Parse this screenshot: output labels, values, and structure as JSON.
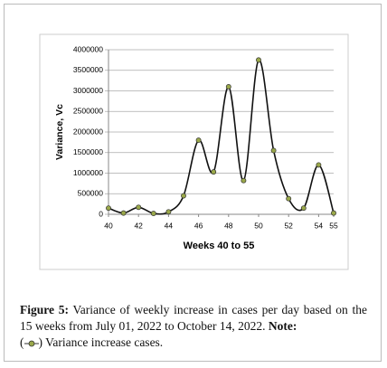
{
  "chart_data": {
    "type": "line",
    "x": [
      40,
      41,
      42,
      43,
      44,
      45,
      46,
      47,
      48,
      49,
      50,
      51,
      52,
      53,
      54,
      55
    ],
    "series": [
      {
        "name": "Variance increase cases.",
        "color": "#9aa84a",
        "values": [
          150000,
          30000,
          170000,
          20000,
          60000,
          450000,
          1800000,
          1030000,
          3100000,
          820000,
          3750000,
          1550000,
          380000,
          150000,
          1200000,
          30000
        ]
      }
    ],
    "xlabel": "Weeks  40 to 55",
    "ylabel": "Variance, Vc",
    "xlim": [
      40,
      55
    ],
    "xticks": [
      40,
      42,
      44,
      46,
      48,
      50,
      52,
      54,
      55
    ],
    "ylim": [
      0,
      4000000
    ],
    "yticks": [
      0,
      500000,
      1000000,
      1500000,
      2000000,
      2500000,
      3000000,
      3500000,
      4000000
    ],
    "grid": true,
    "smooth": true
  },
  "caption": {
    "label": "Figure 5:",
    "text": "Variance of weekly increase in cases per day based on the 15 weeks from July 01, 2022 to October 14, 2022.",
    "note_label": "Note:",
    "symbol_open": "(",
    "symbol_close": ")"
  }
}
